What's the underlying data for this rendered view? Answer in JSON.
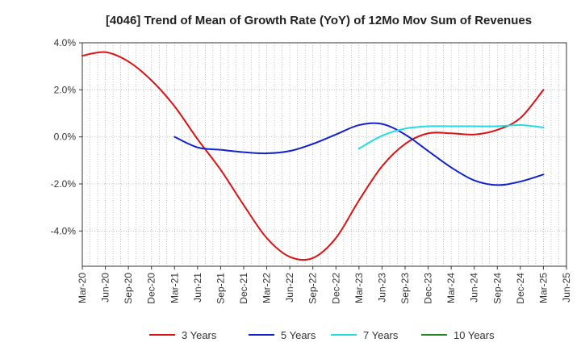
{
  "chart_data": {
    "type": "line",
    "title": "[4046]  Trend of Mean of Growth Rate (YoY) of 12Mo Mov Sum of Revenues",
    "xlabel": "",
    "ylabel": "",
    "x_ticks": [
      "Mar-20",
      "Jun-20",
      "Sep-20",
      "Dec-20",
      "Mar-21",
      "Jun-21",
      "Sep-21",
      "Dec-21",
      "Mar-22",
      "Jun-22",
      "Sep-22",
      "Dec-22",
      "Mar-23",
      "Jun-23",
      "Sep-23",
      "Dec-23",
      "Mar-24",
      "Jun-24",
      "Sep-24",
      "Dec-24",
      "Mar-25",
      "Jun-25"
    ],
    "y_ticks": [
      4.0,
      2.0,
      0.0,
      -2.0,
      -4.0
    ],
    "y_tick_labels": [
      "4.0%",
      "2.0%",
      "0.0%",
      "-2.0%",
      "-4.0%"
    ],
    "ylim": [
      -5.5,
      4.0
    ],
    "grid": true,
    "legend_position": "bottom",
    "series": [
      {
        "name": "3 Years",
        "color": "#dd1111",
        "points": [
          [
            0,
            3.45
          ],
          [
            1,
            3.6
          ],
          [
            2,
            3.2
          ],
          [
            3,
            2.4
          ],
          [
            4,
            1.3
          ],
          [
            5,
            -0.1
          ],
          [
            6,
            -1.4
          ],
          [
            7,
            -2.9
          ],
          [
            8,
            -4.3
          ],
          [
            9,
            -5.1
          ],
          [
            10,
            -5.15
          ],
          [
            11,
            -4.3
          ],
          [
            12,
            -2.7
          ],
          [
            13,
            -1.25
          ],
          [
            14,
            -0.3
          ],
          [
            15,
            0.15
          ],
          [
            16,
            0.15
          ],
          [
            17,
            0.1
          ],
          [
            18,
            0.3
          ],
          [
            19,
            0.8
          ],
          [
            20,
            2.0
          ]
        ]
      },
      {
        "name": "5 Years",
        "color": "#1122cc",
        "points": [
          [
            4,
            0.0
          ],
          [
            5,
            -0.45
          ],
          [
            6,
            -0.55
          ],
          [
            7,
            -0.65
          ],
          [
            8,
            -0.7
          ],
          [
            9,
            -0.6
          ],
          [
            10,
            -0.3
          ],
          [
            11,
            0.1
          ],
          [
            12,
            0.5
          ],
          [
            13,
            0.55
          ],
          [
            14,
            0.1
          ],
          [
            15,
            -0.6
          ],
          [
            16,
            -1.3
          ],
          [
            17,
            -1.85
          ],
          [
            18,
            -2.05
          ],
          [
            19,
            -1.9
          ],
          [
            20,
            -1.6
          ]
        ]
      },
      {
        "name": "7 Years",
        "color": "#22dddd",
        "points": [
          [
            12,
            -0.5
          ],
          [
            13,
            0.05
          ],
          [
            14,
            0.35
          ],
          [
            15,
            0.45
          ],
          [
            16,
            0.45
          ],
          [
            17,
            0.45
          ],
          [
            18,
            0.45
          ],
          [
            19,
            0.5
          ],
          [
            20,
            0.4
          ]
        ]
      },
      {
        "name": "10 Years",
        "color": "#228822",
        "points": []
      }
    ]
  }
}
